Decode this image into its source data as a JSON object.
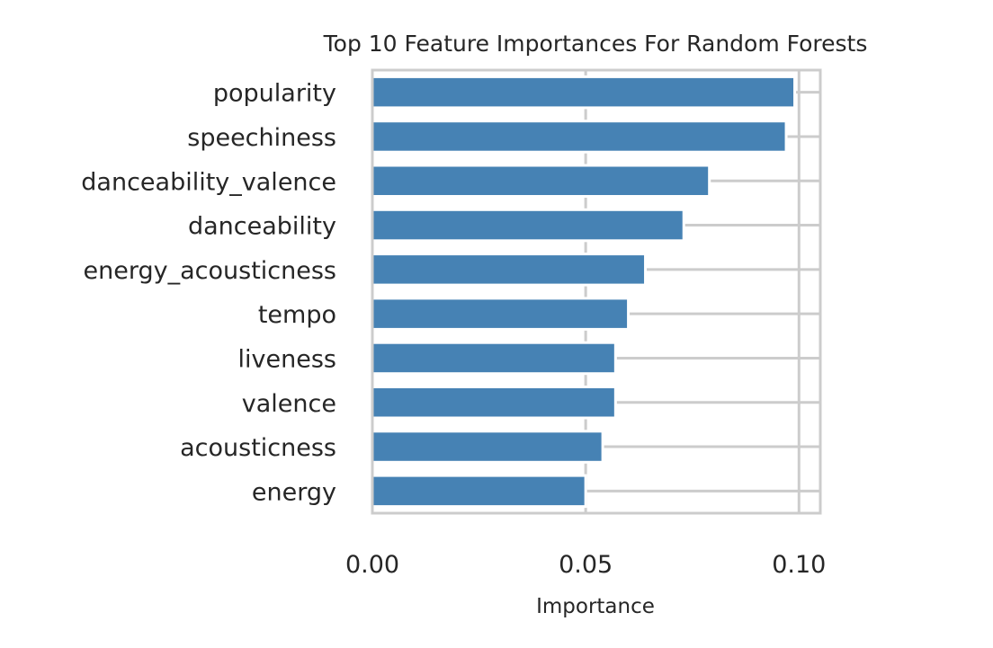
{
  "chart_data": {
    "type": "bar",
    "orientation": "horizontal",
    "title": "Top 10 Feature Importances For Random Forests",
    "xlabel": "Importance",
    "ylabel": "",
    "categories": [
      "popularity",
      "speechiness",
      "danceability_valence",
      "danceability",
      "energy_acousticness",
      "tempo",
      "liveness",
      "valence",
      "acousticness",
      "energy"
    ],
    "values": [
      0.099,
      0.097,
      0.079,
      0.073,
      0.064,
      0.06,
      0.057,
      0.057,
      0.054,
      0.05
    ],
    "xlim": [
      0.0,
      0.105
    ],
    "xticks": [
      0.0,
      0.05,
      0.1
    ],
    "xtick_labels": [
      "0.00",
      "0.05",
      "0.10"
    ],
    "grid": true,
    "bar_color": "#4682b4",
    "grid_color": "#cccccc",
    "legend": "none"
  }
}
